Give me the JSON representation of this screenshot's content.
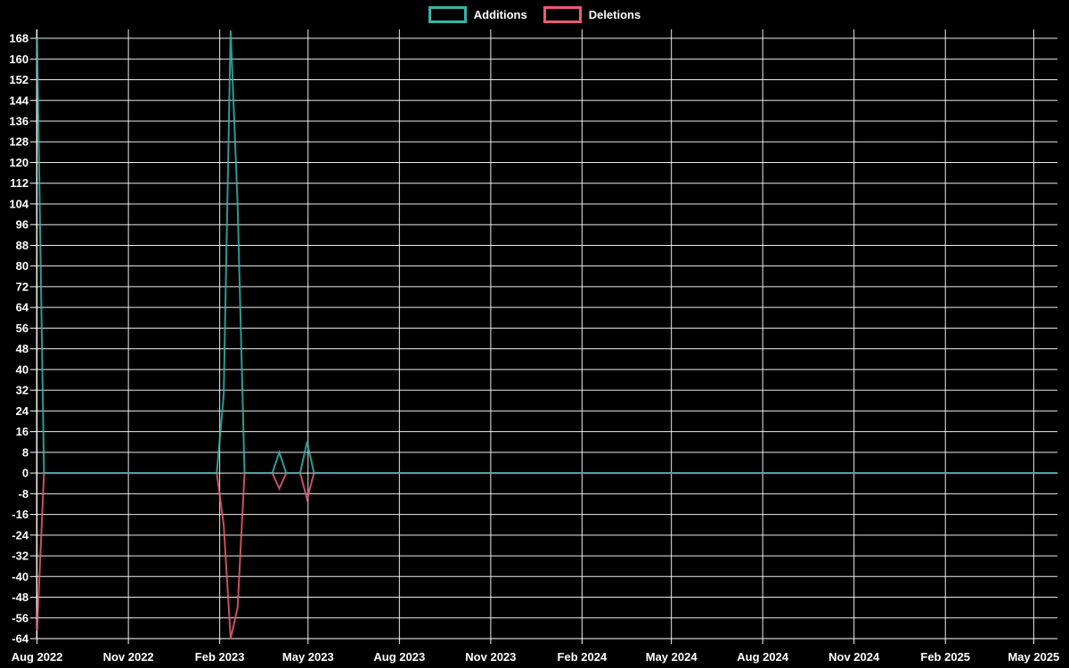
{
  "chart_data": {
    "type": "line",
    "title": "",
    "legend": {
      "position": "top-center",
      "entries": [
        "Additions",
        "Deletions"
      ]
    },
    "background_color": "#000000",
    "grid_color": "#ffffff",
    "text_color": "#ffffff",
    "grid": true,
    "x_axis": {
      "type": "time",
      "ticks": [
        {
          "label": "Aug 2022",
          "date": "2022-08-01"
        },
        {
          "label": "Nov 2022",
          "date": "2022-11-01"
        },
        {
          "label": "Feb 2023",
          "date": "2023-02-01"
        },
        {
          "label": "May 2023",
          "date": "2023-05-01"
        },
        {
          "label": "Aug 2023",
          "date": "2023-08-01"
        },
        {
          "label": "Nov 2023",
          "date": "2023-11-01"
        },
        {
          "label": "Feb 2024",
          "date": "2024-02-01"
        },
        {
          "label": "May 2024",
          "date": "2024-05-01"
        },
        {
          "label": "Aug 2024",
          "date": "2024-08-01"
        },
        {
          "label": "Nov 2024",
          "date": "2024-11-01"
        },
        {
          "label": "Feb 2025",
          "date": "2025-02-01"
        },
        {
          "label": "May 2025",
          "date": "2025-05-01"
        }
      ]
    },
    "y_axis": {
      "min": -64,
      "max": 168,
      "step": 8,
      "tick_values": [
        -64,
        -56,
        -48,
        -40,
        -32,
        -24,
        -16,
        -8,
        0,
        8,
        16,
        24,
        32,
        40,
        48,
        56,
        64,
        72,
        80,
        88,
        96,
        104,
        112,
        120,
        128,
        136,
        144,
        152,
        160,
        168
      ]
    },
    "series": [
      {
        "name": "Additions",
        "color": "#35b5ab",
        "points": [
          [
            "2022-08-01",
            168
          ],
          [
            "2022-08-08",
            0
          ],
          [
            "2023-01-29",
            0
          ],
          [
            "2023-02-05",
            30
          ],
          [
            "2023-02-12",
            171
          ],
          [
            "2023-02-19",
            104
          ],
          [
            "2023-02-26",
            0
          ],
          [
            "2023-03-26",
            0
          ],
          [
            "2023-04-02",
            8
          ],
          [
            "2023-04-09",
            0
          ],
          [
            "2023-04-23",
            0
          ],
          [
            "2023-04-30",
            12
          ],
          [
            "2023-05-07",
            0
          ],
          [
            "2025-05-25",
            0
          ]
        ]
      },
      {
        "name": "Deletions",
        "color": "#ee5a79",
        "points": [
          [
            "2022-08-01",
            -61
          ],
          [
            "2022-08-08",
            0
          ],
          [
            "2023-01-29",
            0
          ],
          [
            "2023-02-05",
            -20
          ],
          [
            "2023-02-12",
            -64
          ],
          [
            "2023-02-19",
            -52
          ],
          [
            "2023-02-26",
            0
          ],
          [
            "2023-03-26",
            0
          ],
          [
            "2023-04-02",
            -6
          ],
          [
            "2023-04-09",
            0
          ],
          [
            "2023-04-23",
            0
          ],
          [
            "2023-04-30",
            -10
          ],
          [
            "2023-05-07",
            0
          ],
          [
            "2025-05-25",
            0
          ]
        ]
      }
    ]
  }
}
